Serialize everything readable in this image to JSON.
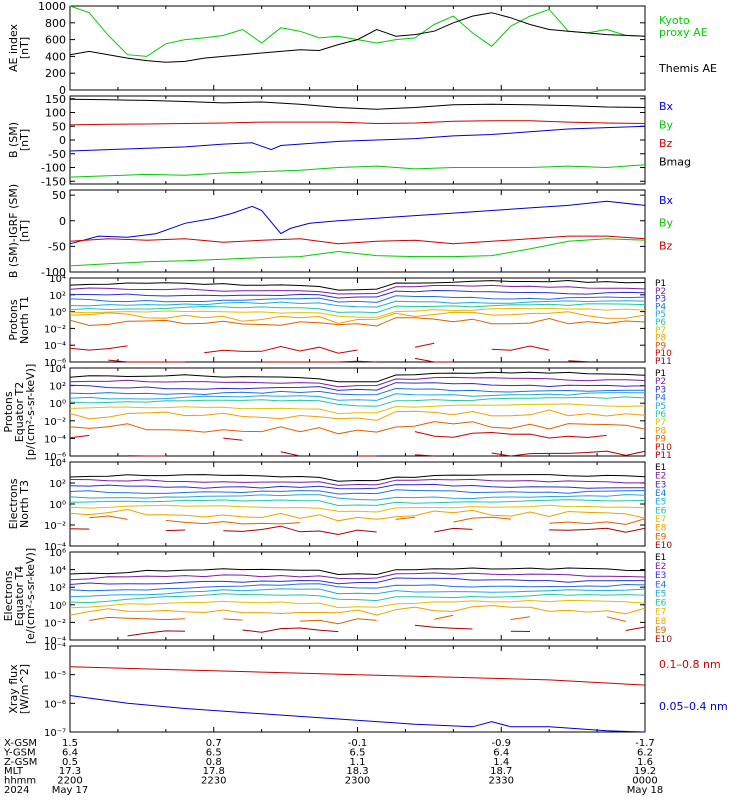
{
  "chart_data": [
    {
      "type": "line",
      "ylabel": "AE index\n[nT]",
      "ylim": [
        0,
        1000
      ],
      "yticks": [
        0,
        200,
        400,
        600,
        800,
        1000
      ],
      "log": false,
      "series": [
        {
          "name": "Kyoto\nproxy AE",
          "color": "#00cc00",
          "x": [
            0,
            2,
            4,
            6,
            8,
            10,
            12,
            14,
            16,
            18,
            20,
            22,
            24,
            26,
            28,
            30,
            32,
            34,
            36,
            38,
            40,
            42,
            44,
            46,
            48,
            50,
            52,
            54,
            56,
            58,
            60
          ],
          "values": [
            1000,
            920,
            650,
            420,
            400,
            550,
            600,
            620,
            650,
            720,
            560,
            740,
            700,
            620,
            640,
            600,
            560,
            600,
            620,
            780,
            880,
            680,
            520,
            760,
            880,
            960,
            700,
            680,
            720,
            650,
            640
          ]
        },
        {
          "name": "Themis AE",
          "color": "#000000",
          "x": [
            0,
            2,
            4,
            6,
            8,
            10,
            12,
            14,
            16,
            18,
            20,
            22,
            24,
            26,
            28,
            30,
            32,
            34,
            36,
            38,
            40,
            42,
            44,
            46,
            48,
            50,
            52,
            54,
            56,
            58,
            60
          ],
          "values": [
            420,
            460,
            420,
            380,
            350,
            330,
            340,
            380,
            400,
            420,
            440,
            460,
            480,
            470,
            540,
            600,
            720,
            640,
            660,
            700,
            800,
            880,
            920,
            860,
            780,
            720,
            700,
            680,
            660,
            650,
            640
          ]
        }
      ]
    },
    {
      "type": "line",
      "ylabel": "B (SM)\n[nT]",
      "ylim": [
        -160,
        160
      ],
      "yticks": [
        -150,
        -100,
        -50,
        0,
        50,
        100,
        150
      ],
      "log": false,
      "series": [
        {
          "name": "Bx",
          "color": "#0000cc",
          "x": [
            0,
            4,
            8,
            12,
            16,
            19,
            21,
            22,
            24,
            28,
            32,
            36,
            40,
            44,
            48,
            52,
            56,
            60
          ],
          "values": [
            -40,
            -35,
            -30,
            -25,
            -15,
            -10,
            -35,
            -20,
            -15,
            -5,
            0,
            5,
            15,
            20,
            30,
            40,
            45,
            50
          ]
        },
        {
          "name": "By",
          "color": "#00cc00",
          "x": [
            0,
            4,
            8,
            12,
            16,
            20,
            24,
            28,
            32,
            36,
            40,
            44,
            48,
            52,
            56,
            60
          ],
          "values": [
            -135,
            -130,
            -125,
            -128,
            -120,
            -115,
            -110,
            -100,
            -95,
            -105,
            -100,
            -100,
            -100,
            -95,
            -100,
            -90
          ]
        },
        {
          "name": "Bz",
          "color": "#cc0000",
          "x": [
            0,
            4,
            8,
            12,
            16,
            20,
            24,
            28,
            32,
            36,
            40,
            44,
            48,
            52,
            56,
            60
          ],
          "values": [
            55,
            57,
            58,
            60,
            62,
            65,
            65,
            65,
            60,
            62,
            68,
            70,
            70,
            65,
            62,
            60
          ]
        },
        {
          "name": "Bmag",
          "color": "#000000",
          "x": [
            0,
            4,
            8,
            12,
            16,
            20,
            24,
            28,
            32,
            36,
            40,
            44,
            48,
            52,
            56,
            60
          ],
          "values": [
            148,
            146,
            144,
            140,
            135,
            138,
            130,
            118,
            112,
            118,
            128,
            130,
            128,
            125,
            120,
            118
          ]
        }
      ]
    },
    {
      "type": "line",
      "ylabel": "B (SM)-IGRF (SM)\n[nT]",
      "ylim": [
        -100,
        60
      ],
      "yticks": [
        -100,
        -50,
        0,
        50
      ],
      "log": false,
      "series": [
        {
          "name": "Bx",
          "color": "#0000cc",
          "x": [
            0,
            3,
            6,
            9,
            12,
            15,
            17,
            19,
            20,
            22,
            23,
            25,
            28,
            32,
            36,
            40,
            44,
            48,
            52,
            56,
            60
          ],
          "values": [
            -45,
            -30,
            -32,
            -25,
            -5,
            5,
            15,
            28,
            20,
            -25,
            -15,
            -5,
            0,
            5,
            10,
            15,
            20,
            25,
            30,
            38,
            30
          ]
        },
        {
          "name": "By",
          "color": "#00cc00",
          "x": [
            0,
            4,
            8,
            12,
            16,
            20,
            24,
            28,
            32,
            36,
            40,
            44,
            48,
            52,
            56,
            60
          ],
          "values": [
            -88,
            -84,
            -80,
            -78,
            -75,
            -72,
            -70,
            -60,
            -68,
            -70,
            -70,
            -68,
            -55,
            -40,
            -35,
            -38
          ]
        },
        {
          "name": "Bz",
          "color": "#cc0000",
          "x": [
            0,
            4,
            8,
            12,
            16,
            20,
            24,
            28,
            32,
            36,
            40,
            44,
            48,
            52,
            56,
            60
          ],
          "values": [
            -40,
            -35,
            -38,
            -35,
            -42,
            -38,
            -35,
            -45,
            -40,
            -38,
            -45,
            -40,
            -35,
            -30,
            -30,
            -35
          ]
        }
      ]
    },
    {
      "type": "line",
      "ylabel": "Protons\nNorth T1",
      "ylim": [
        -6,
        4
      ],
      "ytick_labels": [
        "10⁴",
        "10²",
        "10⁰",
        "10⁻²",
        "10⁻⁴",
        "10⁻⁶"
      ],
      "log": true,
      "series": [
        {
          "name": "P1",
          "color": "#000000",
          "base": 3.2
        },
        {
          "name": "P2",
          "color": "#7a1fa0",
          "base": 2.6
        },
        {
          "name": "P3",
          "color": "#3030cc",
          "base": 2.0
        },
        {
          "name": "P4",
          "color": "#2070e0",
          "base": 1.4
        },
        {
          "name": "P5",
          "color": "#20a8e0",
          "base": 0.9
        },
        {
          "name": "P6",
          "color": "#20c8a0",
          "base": 0.4
        },
        {
          "name": "P7",
          "color": "#e0c000",
          "base": -0.1
        },
        {
          "name": "P8",
          "color": "#f0a000",
          "base": -0.7
        },
        {
          "name": "P9",
          "color": "#e06000",
          "base": -1.4
        },
        {
          "name": "P10",
          "color": "#cc0000",
          "base": -4.4
        },
        {
          "name": "P11",
          "color": "#aa0000",
          "base": -6.0
        }
      ]
    },
    {
      "type": "line",
      "ylabel": "Protons\nEquator T2\n[p/(cm²-s-sr-keV)]",
      "ylim": [
        -6,
        4
      ],
      "ytick_labels": [
        "10⁴",
        "10²",
        "10⁰",
        "10⁻²",
        "10⁻⁴",
        "10⁻⁶"
      ],
      "log": true,
      "series": [
        {
          "name": "P1",
          "color": "#000000",
          "base": 3.0
        },
        {
          "name": "P2",
          "color": "#7a1fa0",
          "base": 2.4
        },
        {
          "name": "P3",
          "color": "#3030cc",
          "base": 1.8
        },
        {
          "name": "P4",
          "color": "#2070e0",
          "base": 1.2
        },
        {
          "name": "P5",
          "color": "#20a8e0",
          "base": 0.7
        },
        {
          "name": "P6",
          "color": "#20c8a0",
          "base": 0.2
        },
        {
          "name": "P7",
          "color": "#e0c000",
          "base": -0.6
        },
        {
          "name": "P8",
          "color": "#f0a000",
          "base": -1.5
        },
        {
          "name": "P9",
          "color": "#e06000",
          "base": -2.8
        },
        {
          "name": "P10",
          "color": "#cc0000",
          "base": -3.8
        },
        {
          "name": "P11",
          "color": "#aa0000",
          "base": -6.0
        }
      ]
    },
    {
      "type": "line",
      "ylabel": "Electrons\nNorth T3",
      "ylim": [
        -4,
        6
      ],
      "ytick_labels": [
        "10⁴",
        "10²",
        "10⁰",
        "10⁻²",
        "10⁻⁴"
      ],
      "log": true,
      "series": [
        {
          "name": "E1",
          "color": "#000000",
          "base": 4.3
        },
        {
          "name": "E2",
          "color": "#7a1fa0",
          "base": 3.7
        },
        {
          "name": "E3",
          "color": "#3030cc",
          "base": 3.1
        },
        {
          "name": "E4",
          "color": "#2070e0",
          "base": 2.5
        },
        {
          "name": "E5",
          "color": "#20a8e0",
          "base": 1.9
        },
        {
          "name": "E6",
          "color": "#20c8a0",
          "base": 1.3
        },
        {
          "name": "E7",
          "color": "#e0c000",
          "base": 0.6
        },
        {
          "name": "E8",
          "color": "#f0a000",
          "base": -0.2
        },
        {
          "name": "E9",
          "color": "#e06000",
          "base": -0.9
        },
        {
          "name": "E10",
          "color": "#aa0000",
          "base": -2.0
        }
      ]
    },
    {
      "type": "line",
      "ylabel": "Electrons\nEquator T4\n[e/(cm²-s-sr-keV)]",
      "ylim": [
        -4,
        6
      ],
      "ytick_labels": [
        "10⁶",
        "10⁴",
        "10²",
        "10⁰",
        "10⁻²",
        "10⁻⁴"
      ],
      "log": true,
      "series": [
        {
          "name": "E1",
          "color": "#000000",
          "base": 4.0
        },
        {
          "name": "E2",
          "color": "#7a1fa0",
          "base": 3.4
        },
        {
          "name": "E3",
          "color": "#3030cc",
          "base": 2.8
        },
        {
          "name": "E4",
          "color": "#2070e0",
          "base": 2.2
        },
        {
          "name": "E5",
          "color": "#20a8e0",
          "base": 1.6
        },
        {
          "name": "E6",
          "color": "#20c8a0",
          "base": 1.0
        },
        {
          "name": "E7",
          "color": "#e0c000",
          "base": 0.3
        },
        {
          "name": "E8",
          "color": "#f0a000",
          "base": -0.5
        },
        {
          "name": "E9",
          "color": "#e06000",
          "base": -1.4
        },
        {
          "name": "E10",
          "color": "#aa0000",
          "base": -2.8
        }
      ]
    },
    {
      "type": "line",
      "ylabel": "Xray flux\n[W/m^2]",
      "ylim": [
        -7.3,
        -4
      ],
      "ytick_labels": [
        "10⁻⁴",
        "10⁻⁵",
        "10⁻⁶",
        "10⁻⁷"
      ],
      "log": true,
      "series": [
        {
          "name": "0.1–0.8 nm",
          "color": "#cc0000",
          "x": [
            0,
            10,
            20,
            30,
            40,
            50,
            60
          ],
          "values": [
            -4.8,
            -4.9,
            -5.0,
            -5.1,
            -5.2,
            -5.3,
            -5.5
          ]
        },
        {
          "name": "0.05–0.4 nm",
          "color": "#0000cc",
          "x": [
            0,
            6,
            12,
            20,
            28,
            36,
            42,
            44,
            46,
            50,
            56,
            60
          ],
          "values": [
            -5.9,
            -6.2,
            -6.4,
            -6.6,
            -6.8,
            -7.0,
            -7.1,
            -6.9,
            -7.1,
            -7.1,
            -7.25,
            -7.3
          ]
        }
      ]
    }
  ],
  "ephemeris": {
    "row_labels": [
      "X-GSM",
      "Y-GSM",
      "Z-GSM",
      "MLT",
      "hhmm",
      "2024"
    ],
    "columns": [
      [
        "1.5",
        "6.4",
        "0.5",
        "17.3",
        "2200",
        "May 17"
      ],
      [
        "0.7",
        "6.5",
        "0.8",
        "17.8",
        "2230",
        ""
      ],
      [
        "-0.1",
        "6.5",
        "1.1",
        "18.3",
        "2300",
        ""
      ],
      [
        "-0.9",
        "6.4",
        "1.4",
        "18.7",
        "2330",
        ""
      ],
      [
        "-1.7",
        "6.2",
        "1.6",
        "19.2",
        "0000",
        "May 18"
      ]
    ]
  }
}
